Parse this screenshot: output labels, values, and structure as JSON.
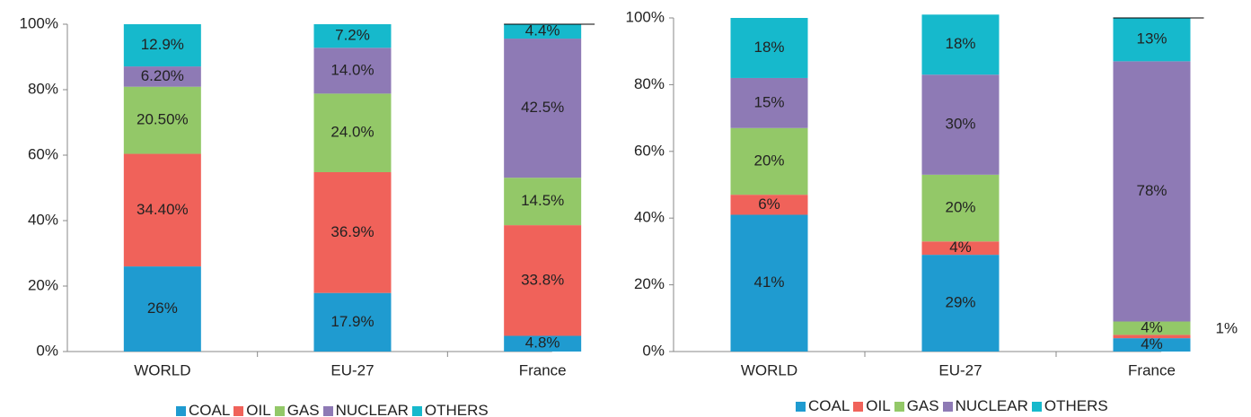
{
  "chart_data": [
    {
      "type": "bar",
      "stacked": true,
      "categories": [
        "WORLD",
        "EU-27",
        "France"
      ],
      "ylim": [
        0,
        100
      ],
      "yticks": [
        {
          "value": 0,
          "label": "0%"
        },
        {
          "value": 20,
          "label": "20%"
        },
        {
          "value": 40,
          "label": "40%"
        },
        {
          "value": 60,
          "label": "60%"
        },
        {
          "value": 80,
          "label": "80%"
        },
        {
          "value": 100,
          "label": "100%"
        }
      ],
      "series": [
        {
          "name": "COAL",
          "color": "#1f9bd0",
          "values": [
            26,
            17.9,
            4.8
          ],
          "value_labels": [
            "26%",
            "17.9%",
            "4.8%"
          ]
        },
        {
          "name": "OIL",
          "color": "#f0625a",
          "values": [
            34.4,
            36.9,
            33.8
          ],
          "value_labels": [
            "34.40%",
            "36.9%",
            "33.8%"
          ]
        },
        {
          "name": "GAS",
          "color": "#93c868",
          "values": [
            20.5,
            24.0,
            14.5
          ],
          "value_labels": [
            "20.50%",
            "24.0%",
            "14.5%"
          ]
        },
        {
          "name": "NUCLEAR",
          "color": "#8e7ab5",
          "values": [
            6.2,
            14.0,
            42.5
          ],
          "value_labels": [
            "6.20%",
            "14.0%",
            "42.5%"
          ]
        },
        {
          "name": "OTHERS",
          "color": "#16b9cc",
          "values": [
            12.9,
            7.2,
            4.4
          ],
          "value_labels": [
            "12.9%",
            "7.2%",
            "4.4%"
          ]
        }
      ]
    },
    {
      "type": "bar",
      "stacked": true,
      "categories": [
        "WORLD",
        "EU-27",
        "France"
      ],
      "ylim": [
        0,
        100
      ],
      "yticks": [
        {
          "value": 0,
          "label": "0%"
        },
        {
          "value": 20,
          "label": "20%"
        },
        {
          "value": 40,
          "label": "40%"
        },
        {
          "value": 60,
          "label": "60%"
        },
        {
          "value": 80,
          "label": "80%"
        },
        {
          "value": 100,
          "label": "100%"
        }
      ],
      "series": [
        {
          "name": "COAL",
          "color": "#1f9bd0",
          "values": [
            41,
            29,
            4
          ],
          "value_labels": [
            "41%",
            "29%",
            "4%"
          ]
        },
        {
          "name": "OIL",
          "color": "#f0625a",
          "values": [
            6,
            4,
            1
          ],
          "value_labels": [
            "6%",
            "4%",
            "1%"
          ]
        },
        {
          "name": "GAS",
          "color": "#93c868",
          "values": [
            20,
            20,
            4
          ],
          "value_labels": [
            "20%",
            "20%",
            "4%"
          ]
        },
        {
          "name": "NUCLEAR",
          "color": "#8e7ab5",
          "values": [
            15,
            30,
            78
          ],
          "value_labels": [
            "15%",
            "30%",
            "78%"
          ]
        },
        {
          "name": "OTHERS",
          "color": "#16b9cc",
          "values": [
            18,
            18,
            13
          ],
          "value_labels": [
            "18%",
            "18%",
            "13%"
          ]
        }
      ]
    }
  ]
}
